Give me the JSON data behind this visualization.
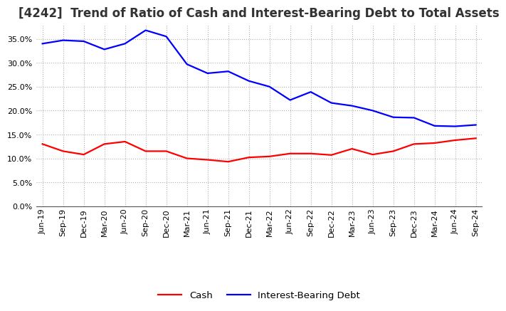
{
  "title": "[4242]  Trend of Ratio of Cash and Interest-Bearing Debt to Total Assets",
  "labels": [
    "Jun-19",
    "Sep-19",
    "Dec-19",
    "Mar-20",
    "Jun-20",
    "Sep-20",
    "Dec-20",
    "Mar-21",
    "Jun-21",
    "Sep-21",
    "Dec-21",
    "Mar-22",
    "Jun-22",
    "Sep-22",
    "Dec-22",
    "Mar-23",
    "Jun-23",
    "Sep-23",
    "Dec-23",
    "Mar-24",
    "Jun-24",
    "Sep-24"
  ],
  "cash": [
    0.13,
    0.115,
    0.108,
    0.13,
    0.135,
    0.115,
    0.115,
    0.1,
    0.097,
    0.093,
    0.102,
    0.104,
    0.11,
    0.11,
    0.107,
    0.12,
    0.108,
    0.115,
    0.13,
    0.132,
    0.138,
    0.142
  ],
  "ibd": [
    0.34,
    0.347,
    0.345,
    0.328,
    0.34,
    0.368,
    0.355,
    0.297,
    0.278,
    0.282,
    0.262,
    0.25,
    0.222,
    0.239,
    0.216,
    0.21,
    0.2,
    0.186,
    0.185,
    0.168,
    0.167,
    0.17
  ],
  "cash_color": "#ff0000",
  "ibd_color": "#0000ff",
  "bg_color": "#ffffff",
  "grid_color": "#b0b0b0",
  "title_color": "#333333",
  "ylim": [
    0.0,
    0.38
  ],
  "yticks": [
    0.0,
    0.05,
    0.1,
    0.15,
    0.2,
    0.25,
    0.3,
    0.35
  ],
  "legend_cash": "Cash",
  "legend_ibd": "Interest-Bearing Debt",
  "title_fontsize": 12,
  "tick_fontsize": 8,
  "legend_fontsize": 9.5
}
